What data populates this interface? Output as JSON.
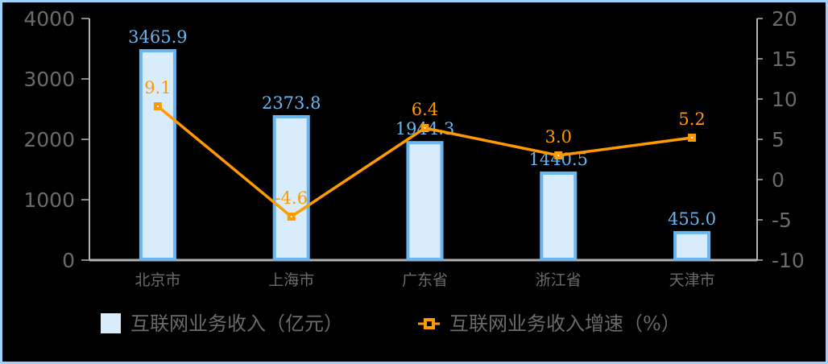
{
  "chart_data": {
    "type": "bar+line",
    "categories": [
      "北京市",
      "上海市",
      "广东省",
      "浙江省",
      "天津市"
    ],
    "series": [
      {
        "name": "互联网业务收入（亿元）",
        "type": "bar",
        "axis": "left",
        "values": [
          3465.9,
          2373.8,
          1944.3,
          1440.5,
          455.0
        ],
        "labels": [
          "3465.9",
          "2373.8",
          "1944.3",
          "1440.5",
          "455.0"
        ]
      },
      {
        "name": "互联网业务收入增速（%）",
        "type": "line",
        "axis": "right",
        "values": [
          9.1,
          -4.6,
          6.4,
          3.0,
          5.2
        ],
        "labels": [
          "9.1",
          "-4.6",
          "6.4",
          "3.0",
          "5.2"
        ]
      }
    ],
    "y_left": {
      "range": [
        0,
        4000
      ],
      "ticks": [
        "0",
        "1000",
        "2000",
        "3000",
        "4000"
      ]
    },
    "y_right": {
      "range": [
        -10,
        20
      ],
      "ticks": [
        "-10",
        "-5",
        "0",
        "5",
        "10",
        "15",
        "20"
      ]
    },
    "legend_position": "bottom",
    "grid": false,
    "title": "",
    "xlabel": "",
    "ylabel": ""
  },
  "legend": {
    "bar_label": "互联网业务收入（亿元）",
    "line_label": "互联网业务收入增速（%）"
  },
  "colors": {
    "bar_fill": "#d9ecfb",
    "bar_stroke": "#6ab6f0",
    "line": "#ff9a00",
    "axis": "#b3b3b3",
    "text": "#6b6b6b",
    "border": "#9fd0ff"
  }
}
